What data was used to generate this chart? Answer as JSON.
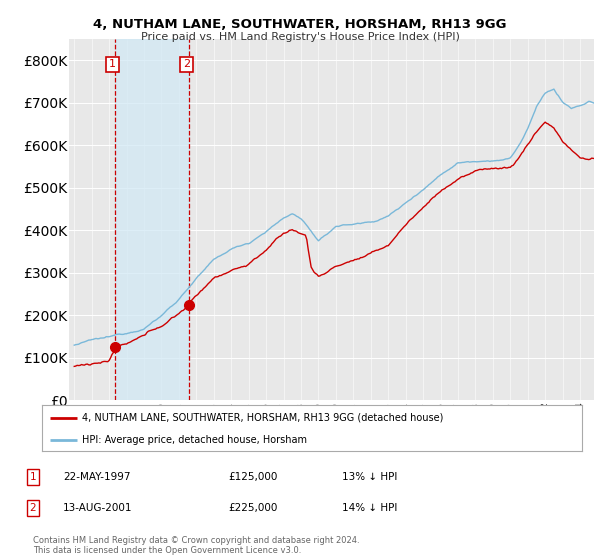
{
  "title": "4, NUTHAM LANE, SOUTHWATER, HORSHAM, RH13 9GG",
  "subtitle": "Price paid vs. HM Land Registry's House Price Index (HPI)",
  "legend_line1": "4, NUTHAM LANE, SOUTHWATER, HORSHAM, RH13 9GG (detached house)",
  "legend_line2": "HPI: Average price, detached house, Horsham",
  "purchase1_date": "22-MAY-1997",
  "purchase1_price": "£125,000",
  "purchase1_hpi": "13% ↓ HPI",
  "purchase2_date": "13-AUG-2001",
  "purchase2_price": "£225,000",
  "purchase2_hpi": "14% ↓ HPI",
  "footer": "Contains HM Land Registry data © Crown copyright and database right 2024.\nThis data is licensed under the Open Government Licence v3.0.",
  "hpi_color": "#7ab8d9",
  "price_color": "#cc0000",
  "ylim": [
    0,
    850000
  ],
  "yticks": [
    0,
    100000,
    200000,
    300000,
    400000,
    500000,
    600000,
    700000,
    800000
  ],
  "background_color": "#ffffff",
  "plot_bg_color": "#e8e8e8"
}
